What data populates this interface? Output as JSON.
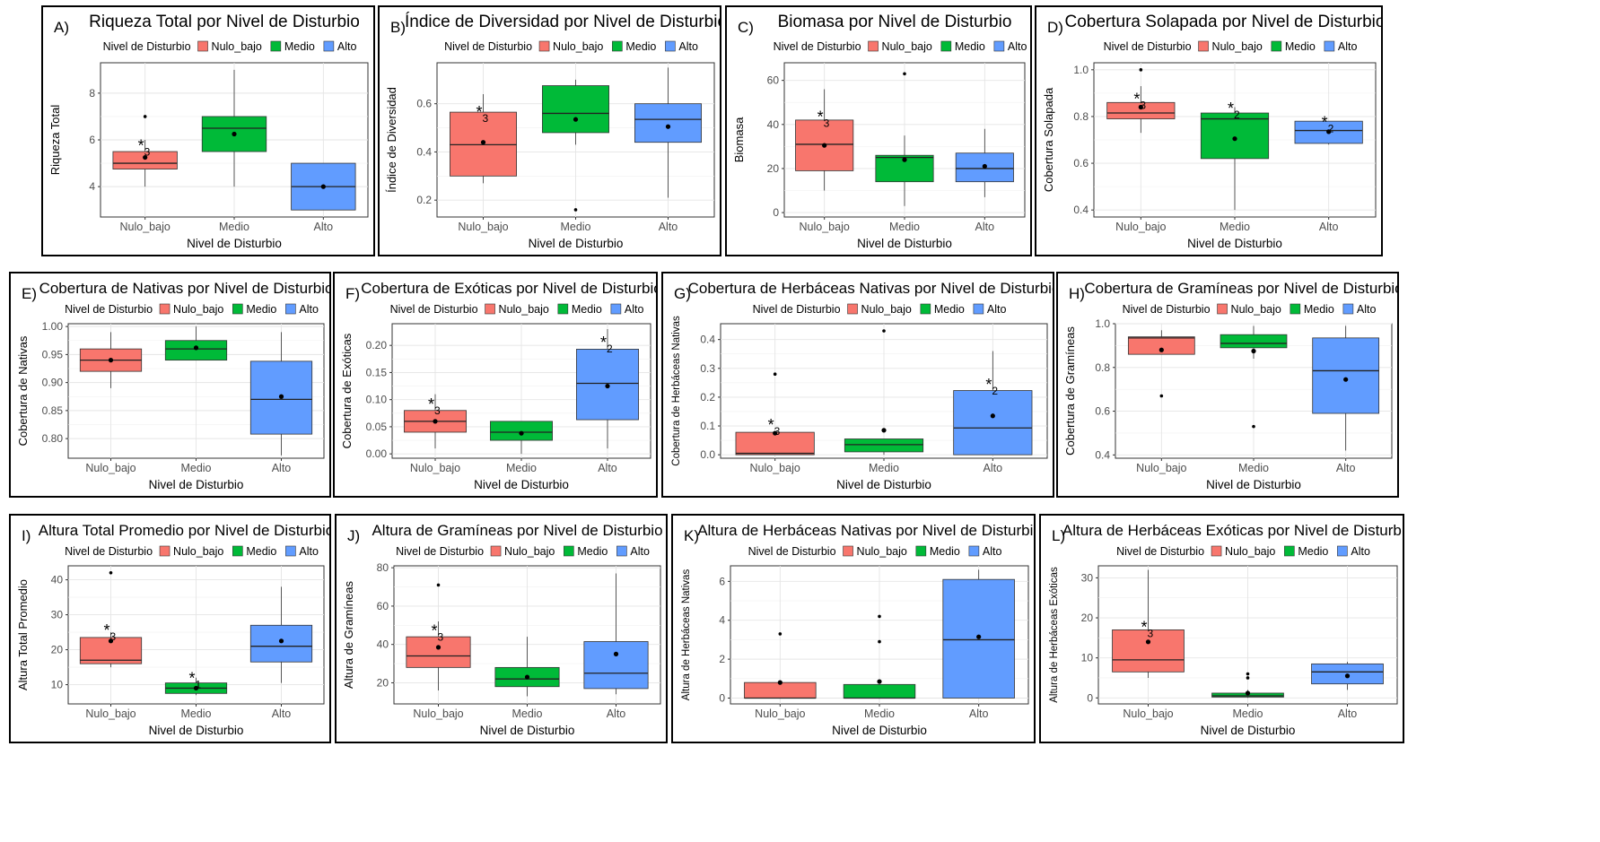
{
  "colors": {
    "Nulo_bajo": "#F8766D",
    "Medio": "#00BA38",
    "Alto": "#619CFF"
  },
  "common": {
    "legend_title": "Nivel de Disturbio",
    "x_title": "Nivel de Disturbio",
    "categories": [
      "Nulo_bajo",
      "Medio",
      "Alto"
    ]
  },
  "chart_data": [
    {
      "id": "A",
      "letter": "A)",
      "type": "box",
      "title": "Riqueza Total por Nivel de Disturbio",
      "ylabel": "Riqueza Total",
      "xlabel": "Nivel de Disturbio",
      "ylim": [
        2.7,
        9.3
      ],
      "ticks": [
        4,
        6,
        8
      ],
      "tick_labels": [
        "4",
        "6",
        "8"
      ],
      "boxes": [
        {
          "cat": "Nulo_bajo",
          "min": 4,
          "q1": 4.75,
          "median": 5.0,
          "q3": 5.5,
          "max": 6,
          "mean": 5.25,
          "outliers": [
            7
          ]
        },
        {
          "cat": "Medio",
          "min": 4,
          "q1": 5.5,
          "median": 6.5,
          "q3": 7.0,
          "max": 9,
          "mean": 6.25,
          "outliers": []
        },
        {
          "cat": "Alto",
          "min": 3,
          "q1": 3.0,
          "median": 4.0,
          "q3": 5.0,
          "max": 5,
          "mean": 4.0,
          "outliers": []
        }
      ],
      "annotations": [
        {
          "cat": "Nulo_bajo",
          "y": 5.9,
          "text": "*",
          "sub": "3"
        }
      ]
    },
    {
      "id": "B",
      "letter": "B)",
      "type": "box",
      "title": "Índice de Diversidad por Nivel de Disturbio",
      "ylabel": "Índice de Diversidad",
      "xlabel": "Nivel de Disturbio",
      "ylim": [
        0.13,
        0.77
      ],
      "ticks": [
        0.2,
        0.4,
        0.6
      ],
      "tick_labels": [
        "0.2",
        "0.4",
        "0.6"
      ],
      "boxes": [
        {
          "cat": "Nulo_bajo",
          "min": 0.27,
          "q1": 0.3,
          "median": 0.43,
          "q3": 0.565,
          "max": 0.64,
          "mean": 0.44,
          "outliers": []
        },
        {
          "cat": "Medio",
          "min": 0.43,
          "q1": 0.48,
          "median": 0.56,
          "q3": 0.675,
          "max": 0.7,
          "mean": 0.535,
          "outliers": [
            0.16
          ]
        },
        {
          "cat": "Alto",
          "min": 0.21,
          "q1": 0.44,
          "median": 0.535,
          "q3": 0.6,
          "max": 0.75,
          "mean": 0.505,
          "outliers": []
        }
      ],
      "annotations": [
        {
          "cat": "Nulo_bajo",
          "y": 0.58,
          "text": "*",
          "sub": "3"
        }
      ]
    },
    {
      "id": "C",
      "letter": "C)",
      "type": "box",
      "title": "Biomasa por Nivel de Disturbio",
      "ylabel": "Biomasa",
      "xlabel": "Nivel de Disturbio",
      "ylim": [
        -2,
        68
      ],
      "ticks": [
        0,
        20,
        40,
        60
      ],
      "tick_labels": [
        "0",
        "20",
        "40",
        "60"
      ],
      "boxes": [
        {
          "cat": "Nulo_bajo",
          "min": 10,
          "q1": 19,
          "median": 31,
          "q3": 42,
          "max": 56,
          "mean": 30.5,
          "outliers": []
        },
        {
          "cat": "Medio",
          "min": 3,
          "q1": 14,
          "median": 25,
          "q3": 26,
          "max": 35,
          "mean": 24,
          "outliers": [
            63
          ]
        },
        {
          "cat": "Alto",
          "min": 7,
          "q1": 14,
          "median": 20,
          "q3": 27,
          "max": 38,
          "mean": 21,
          "outliers": []
        }
      ],
      "annotations": [
        {
          "cat": "Nulo_bajo",
          "y": 45,
          "text": "*",
          "sub": "3"
        }
      ]
    },
    {
      "id": "D",
      "letter": "D)",
      "type": "box",
      "title": "Cobertura Solapada por Nivel de Disturbio",
      "ylabel": "Cobertura Solapada",
      "xlabel": "Nivel de Disturbio",
      "ylim": [
        0.37,
        1.03
      ],
      "ticks": [
        0.4,
        0.6,
        0.8,
        1.0
      ],
      "tick_labels": [
        "0.4",
        "0.6",
        "0.8",
        "1.0"
      ],
      "boxes": [
        {
          "cat": "Nulo_bajo",
          "min": 0.73,
          "q1": 0.79,
          "median": 0.815,
          "q3": 0.86,
          "max": 0.93,
          "mean": 0.84,
          "outliers": [
            1.0
          ]
        },
        {
          "cat": "Medio",
          "min": 0.4,
          "q1": 0.62,
          "median": 0.79,
          "q3": 0.815,
          "max": 0.84,
          "mean": 0.705,
          "outliers": []
        },
        {
          "cat": "Alto",
          "min": 0.68,
          "q1": 0.685,
          "median": 0.74,
          "q3": 0.78,
          "max": 0.78,
          "mean": 0.735,
          "outliers": []
        }
      ],
      "annotations": [
        {
          "cat": "Nulo_bajo",
          "y": 0.89,
          "text": "*",
          "sub": "3"
        },
        {
          "cat": "Medio",
          "y": 0.85,
          "text": "*",
          "sub": "2"
        },
        {
          "cat": "Alto",
          "y": 0.79,
          "text": "*",
          "sub": "2"
        }
      ]
    },
    {
      "id": "E",
      "letter": "E)",
      "type": "box",
      "title": "Cobertura de Nativas por Nivel de Disturbio",
      "ylabel": "Cobertura de Nativas",
      "xlabel": "Nivel de Disturbio",
      "ylim": [
        0.765,
        1.005
      ],
      "ticks": [
        0.8,
        0.85,
        0.9,
        0.95,
        1.0
      ],
      "tick_labels": [
        "0.80",
        "0.85",
        "0.90",
        "0.95",
        "1.00"
      ],
      "boxes": [
        {
          "cat": "Nulo_bajo",
          "min": 0.89,
          "q1": 0.92,
          "median": 0.94,
          "q3": 0.96,
          "max": 0.99,
          "mean": 0.94,
          "outliers": []
        },
        {
          "cat": "Medio",
          "min": 0.94,
          "q1": 0.94,
          "median": 0.96,
          "q3": 0.975,
          "max": 1.0,
          "mean": 0.962,
          "outliers": []
        },
        {
          "cat": "Alto",
          "min": 0.77,
          "q1": 0.808,
          "median": 0.87,
          "q3": 0.938,
          "max": 0.99,
          "mean": 0.875,
          "outliers": []
        }
      ],
      "annotations": []
    },
    {
      "id": "F",
      "letter": "F)",
      "type": "box",
      "title": "Cobertura de Exóticas por Nivel de Disturbio",
      "ylabel": "Cobertura de Exóticas",
      "xlabel": "Nivel de Disturbio",
      "ylim": [
        -0.008,
        0.24
      ],
      "ticks": [
        0.0,
        0.05,
        0.1,
        0.15,
        0.2
      ],
      "tick_labels": [
        "0.00",
        "0.05",
        "0.10",
        "0.15",
        "0.20"
      ],
      "boxes": [
        {
          "cat": "Nulo_bajo",
          "min": 0.01,
          "q1": 0.04,
          "median": 0.06,
          "q3": 0.08,
          "max": 0.11,
          "mean": 0.06,
          "outliers": []
        },
        {
          "cat": "Medio",
          "min": 0.0,
          "q1": 0.025,
          "median": 0.04,
          "q3": 0.06,
          "max": 0.06,
          "mean": 0.038,
          "outliers": []
        },
        {
          "cat": "Alto",
          "min": 0.01,
          "q1": 0.063,
          "median": 0.13,
          "q3": 0.193,
          "max": 0.23,
          "mean": 0.125,
          "outliers": []
        }
      ],
      "annotations": [
        {
          "cat": "Nulo_bajo",
          "y": 0.098,
          "text": "*",
          "sub": "3"
        },
        {
          "cat": "Alto",
          "y": 0.212,
          "text": "*",
          "sub": "2"
        }
      ]
    },
    {
      "id": "G",
      "letter": "G)",
      "type": "box",
      "title": "Cobertura de Herbáceas Nativas por Nivel de Disturbio",
      "ylabel": "Cobertura de Herbáceas Nativas",
      "xlabel": "Nivel de Disturbio",
      "ylim": [
        -0.012,
        0.455
      ],
      "ticks": [
        0.0,
        0.1,
        0.2,
        0.3,
        0.4
      ],
      "tick_labels": [
        "0.0",
        "0.1",
        "0.2",
        "0.3",
        "0.4"
      ],
      "boxes": [
        {
          "cat": "Nulo_bajo",
          "min": 0.0,
          "q1": 0.0,
          "median": 0.005,
          "q3": 0.078,
          "max": 0.08,
          "mean": 0.075,
          "outliers": [
            0.28
          ]
        },
        {
          "cat": "Medio",
          "min": 0.0,
          "q1": 0.01,
          "median": 0.035,
          "q3": 0.055,
          "max": 0.055,
          "mean": 0.085,
          "outliers": [
            0.43
          ]
        },
        {
          "cat": "Alto",
          "min": 0.0,
          "q1": 0.0,
          "median": 0.093,
          "q3": 0.223,
          "max": 0.36,
          "mean": 0.135,
          "outliers": []
        }
      ],
      "annotations": [
        {
          "cat": "Nulo_bajo",
          "y": 0.115,
          "text": "*",
          "sub": "3"
        },
        {
          "cat": "Alto",
          "y": 0.255,
          "text": "*",
          "sub": "2"
        }
      ]
    },
    {
      "id": "H",
      "letter": "H)",
      "type": "box",
      "title": "Cobertura de Gramíneas por Nivel de Disturbio",
      "ylabel": "Cobertura de Gramíneas",
      "xlabel": "Nivel de Disturbio",
      "ylim": [
        0.385,
        1.0
      ],
      "ticks": [
        0.4,
        0.6,
        0.8,
        1.0
      ],
      "tick_labels": [
        "0.4",
        "0.6",
        "0.8",
        "1.0"
      ],
      "boxes": [
        {
          "cat": "Nulo_bajo",
          "min": 0.86,
          "q1": 0.86,
          "median": 0.935,
          "q3": 0.94,
          "max": 0.97,
          "mean": 0.88,
          "outliers": [
            0.67
          ]
        },
        {
          "cat": "Medio",
          "min": 0.84,
          "q1": 0.89,
          "median": 0.91,
          "q3": 0.95,
          "max": 0.99,
          "mean": 0.875,
          "outliers": [
            0.53
          ]
        },
        {
          "cat": "Alto",
          "min": 0.42,
          "q1": 0.59,
          "median": 0.785,
          "q3": 0.935,
          "max": 0.99,
          "mean": 0.745,
          "outliers": []
        }
      ],
      "annotations": []
    },
    {
      "id": "I",
      "letter": "I)",
      "type": "box",
      "title": "Altura Total Promedio por Nivel de Disturbio",
      "ylabel": "Altura Total Promedio",
      "xlabel": "Nivel de Disturbio",
      "ylim": [
        4.5,
        44
      ],
      "ticks": [
        10,
        20,
        30,
        40
      ],
      "tick_labels": [
        "10",
        "20",
        "30",
        "40"
      ],
      "boxes": [
        {
          "cat": "Nulo_bajo",
          "min": 15,
          "q1": 16,
          "median": 17,
          "q3": 23.5,
          "max": 25,
          "mean": 22.5,
          "outliers": [
            42
          ]
        },
        {
          "cat": "Medio",
          "min": 7,
          "q1": 7.5,
          "median": 9,
          "q3": 10.5,
          "max": 12,
          "mean": 9,
          "outliers": []
        },
        {
          "cat": "Alto",
          "min": 10.5,
          "q1": 16.5,
          "median": 21,
          "q3": 27,
          "max": 38,
          "mean": 22.5,
          "outliers": []
        }
      ],
      "annotations": [
        {
          "cat": "Nulo_bajo",
          "y": 26.5,
          "text": "*",
          "sub": "3"
        },
        {
          "cat": "Medio",
          "y": 12.8,
          "text": "*",
          "sub": "1"
        }
      ]
    },
    {
      "id": "J",
      "letter": "J)",
      "type": "box",
      "title": "Altura de Gramíneas por Nivel de Disturbio",
      "ylabel": "Altura de Gramíneas",
      "xlabel": "Nivel de Disturbio",
      "ylim": [
        9,
        81
      ],
      "ticks": [
        20,
        40,
        60,
        80
      ],
      "tick_labels": [
        "20",
        "40",
        "60",
        "80"
      ],
      "boxes": [
        {
          "cat": "Nulo_bajo",
          "min": 16,
          "q1": 28,
          "median": 34,
          "q3": 44,
          "max": 52,
          "mean": 38.5,
          "outliers": [
            71
          ]
        },
        {
          "cat": "Medio",
          "min": 13,
          "q1": 18,
          "median": 22,
          "q3": 28,
          "max": 44,
          "mean": 23,
          "outliers": []
        },
        {
          "cat": "Alto",
          "min": 14,
          "q1": 17,
          "median": 25,
          "q3": 41.5,
          "max": 77,
          "mean": 35,
          "outliers": []
        }
      ],
      "annotations": [
        {
          "cat": "Nulo_bajo",
          "y": 49,
          "text": "*",
          "sub": "3"
        }
      ]
    },
    {
      "id": "K",
      "letter": "K)",
      "type": "box",
      "title": "Altura de Herbáceas Nativas por Nivel de Disturbio",
      "ylabel": "Altura de Herbáceas Nativas",
      "xlabel": "Nivel de Disturbio",
      "ylim": [
        -0.3,
        6.8
      ],
      "ticks": [
        0,
        2,
        4,
        6
      ],
      "tick_labels": [
        "0",
        "2",
        "4",
        "6"
      ],
      "boxes": [
        {
          "cat": "Nulo_bajo",
          "min": 0.0,
          "q1": 0.0,
          "median": 0.0,
          "q3": 0.8,
          "max": 0.8,
          "mean": 0.8,
          "outliers": [
            3.3
          ]
        },
        {
          "cat": "Medio",
          "min": 0.0,
          "q1": 0.0,
          "median": 0.0,
          "q3": 0.7,
          "max": 0.7,
          "mean": 0.85,
          "outliers": [
            2.9,
            4.2
          ]
        },
        {
          "cat": "Alto",
          "min": 0.0,
          "q1": 0.0,
          "median": 3.0,
          "q3": 6.1,
          "max": 6.6,
          "mean": 3.15,
          "outliers": []
        }
      ],
      "annotations": []
    },
    {
      "id": "L",
      "letter": "L)",
      "type": "box",
      "title": "Altura de Herbáceas Exóticas por Nivel de Disturbio",
      "ylabel": "Altura de Herbáceas Exóticas",
      "xlabel": "Nivel de Disturbio",
      "ylim": [
        -1.5,
        33
      ],
      "ticks": [
        0,
        10,
        20,
        30
      ],
      "tick_labels": [
        "0",
        "10",
        "20",
        "30"
      ],
      "boxes": [
        {
          "cat": "Nulo_bajo",
          "min": 5,
          "q1": 6.5,
          "median": 9.5,
          "q3": 17,
          "max": 32,
          "mean": 14,
          "outliers": []
        },
        {
          "cat": "Medio",
          "min": 0,
          "q1": 0.2,
          "median": 0.5,
          "q3": 1.2,
          "max": 2,
          "mean": 1.2,
          "outliers": [
            5,
            6
          ]
        },
        {
          "cat": "Alto",
          "min": 2,
          "q1": 3.5,
          "median": 6.5,
          "q3": 8.5,
          "max": 9,
          "mean": 5.5,
          "outliers": []
        }
      ],
      "annotations": [
        {
          "cat": "Nulo_bajo",
          "y": 18.5,
          "text": "*",
          "sub": "3"
        }
      ]
    }
  ]
}
